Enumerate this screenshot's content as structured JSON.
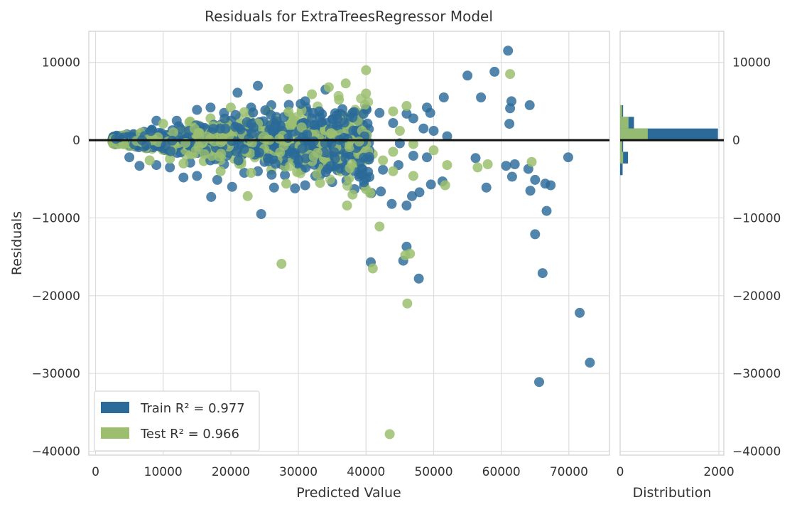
{
  "chart_data": {
    "type": "scatter",
    "title": "Residuals for ExtraTreesRegressor Model",
    "xlabel": "Predicted Value",
    "ylabel": "Residuals",
    "xlim": [
      -1000,
      76000
    ],
    "ylim": [
      -40500,
      14000
    ],
    "xticks": [
      0,
      10000,
      20000,
      30000,
      40000,
      50000,
      60000,
      70000
    ],
    "yticks": [
      10000,
      0,
      -10000,
      -20000,
      -30000,
      -40000
    ],
    "grid": true,
    "zero_line": 0,
    "legend": {
      "placement": "lower-left",
      "entries": [
        {
          "label": "Train R² = 0.977",
          "color": "#2b6a99"
        },
        {
          "label": "Test R² = 0.966",
          "color": "#9bbf6f"
        }
      ]
    },
    "series": [
      {
        "name": "Train",
        "color": "#2b6a99",
        "r2": 0.977,
        "points": [
          [
            61000,
            11500
          ],
          [
            59000,
            8800
          ],
          [
            55000,
            8300
          ],
          [
            57000,
            5500
          ],
          [
            51500,
            5500
          ],
          [
            61500,
            5000
          ],
          [
            61300,
            4100
          ],
          [
            64200,
            4500
          ],
          [
            61200,
            2100
          ],
          [
            49000,
            4200
          ],
          [
            49500,
            3500
          ],
          [
            46000,
            3400
          ],
          [
            47000,
            2800
          ],
          [
            48500,
            1500
          ],
          [
            50000,
            1200
          ],
          [
            52000,
            500
          ],
          [
            44000,
            2200
          ],
          [
            42000,
            3500
          ],
          [
            40000,
            4100
          ],
          [
            38000,
            3200
          ],
          [
            36500,
            4000
          ],
          [
            34000,
            6500
          ],
          [
            31000,
            5000
          ],
          [
            26000,
            4500
          ],
          [
            23000,
            4200
          ],
          [
            24000,
            7000
          ],
          [
            21000,
            6100
          ],
          [
            19000,
            3500
          ],
          [
            17000,
            4200
          ],
          [
            15000,
            3900
          ],
          [
            12000,
            2500
          ],
          [
            9000,
            2500
          ],
          [
            45000,
            -400
          ],
          [
            47000,
            -2000
          ],
          [
            49000,
            -2200
          ],
          [
            56200,
            -2300
          ],
          [
            60700,
            -3300
          ],
          [
            62000,
            -3100
          ],
          [
            64000,
            -3700
          ],
          [
            69900,
            -2200
          ],
          [
            61600,
            -4700
          ],
          [
            64300,
            -6500
          ],
          [
            66500,
            -5600
          ],
          [
            67300,
            -5800
          ],
          [
            65000,
            -5100
          ],
          [
            57800,
            -6100
          ],
          [
            51300,
            -5300
          ],
          [
            49600,
            -5700
          ],
          [
            47900,
            -6700
          ],
          [
            46800,
            -7200
          ],
          [
            46000,
            -8400
          ],
          [
            43800,
            -8200
          ],
          [
            42200,
            -6600
          ],
          [
            40800,
            -6800
          ],
          [
            39700,
            -5900
          ],
          [
            38300,
            -6300
          ],
          [
            37100,
            -5200
          ],
          [
            35000,
            -5400
          ],
          [
            33200,
            -4500
          ],
          [
            31000,
            -5800
          ],
          [
            29500,
            -6200
          ],
          [
            28000,
            -4500
          ],
          [
            26400,
            -6100
          ],
          [
            24000,
            -4000
          ],
          [
            22000,
            -4200
          ],
          [
            20200,
            -6000
          ],
          [
            18000,
            -5100
          ],
          [
            17100,
            -7300
          ],
          [
            15000,
            -4600
          ],
          [
            13000,
            -4800
          ],
          [
            11000,
            -3500
          ],
          [
            9000,
            -3200
          ],
          [
            6500,
            -3300
          ],
          [
            5000,
            -2200
          ],
          [
            24500,
            -9500
          ],
          [
            66700,
            -9100
          ],
          [
            65000,
            -12100
          ],
          [
            46000,
            -13700
          ],
          [
            45500,
            -15500
          ],
          [
            40700,
            -15700
          ],
          [
            47800,
            -17800
          ],
          [
            66100,
            -17100
          ],
          [
            71600,
            -22200
          ],
          [
            73100,
            -28600
          ],
          [
            65600,
            -31100
          ],
          [
            30500,
            -3800
          ],
          [
            27500,
            -3100
          ],
          [
            25000,
            -2800
          ],
          [
            35000,
            -3400
          ],
          [
            39000,
            -4700
          ],
          [
            42500,
            -3800
          ],
          [
            44800,
            -3200
          ],
          [
            32500,
            -4600
          ],
          [
            19000,
            -3100
          ],
          [
            14000,
            -2900
          ]
        ]
      },
      {
        "name": "Test",
        "color": "#9bbf6f",
        "r2": 0.966,
        "points": [
          [
            40000,
            9000
          ],
          [
            61300,
            8500
          ],
          [
            37000,
            7300
          ],
          [
            34500,
            6800
          ],
          [
            28500,
            6600
          ],
          [
            40000,
            6000
          ],
          [
            32000,
            5900
          ],
          [
            36000,
            5200
          ],
          [
            44000,
            3700
          ],
          [
            46000,
            4400
          ],
          [
            25500,
            3700
          ],
          [
            20000,
            4200
          ],
          [
            22000,
            3600
          ],
          [
            17000,
            2800
          ],
          [
            14000,
            2400
          ],
          [
            10000,
            2100
          ],
          [
            45000,
            1200
          ],
          [
            47000,
            -500
          ],
          [
            44000,
            -1500
          ],
          [
            41000,
            -1800
          ],
          [
            50000,
            -1300
          ],
          [
            52000,
            -3200
          ],
          [
            56500,
            -3500
          ],
          [
            58000,
            -3100
          ],
          [
            64500,
            -2800
          ],
          [
            47000,
            -4600
          ],
          [
            44000,
            -4000
          ],
          [
            51700,
            -5800
          ],
          [
            36000,
            -3800
          ],
          [
            37500,
            -4900
          ],
          [
            40000,
            -6300
          ],
          [
            38000,
            -7000
          ],
          [
            33200,
            -5500
          ],
          [
            29800,
            -4100
          ],
          [
            28200,
            -5600
          ],
          [
            26000,
            -3800
          ],
          [
            23000,
            -4200
          ],
          [
            22500,
            -7200
          ],
          [
            18500,
            -4000
          ],
          [
            16000,
            -2700
          ],
          [
            13000,
            -3000
          ],
          [
            11000,
            -2400
          ],
          [
            8000,
            -2600
          ],
          [
            40600,
            -6800
          ],
          [
            37200,
            -8400
          ],
          [
            42000,
            -11100
          ],
          [
            45800,
            -14800
          ],
          [
            46500,
            -14600
          ],
          [
            27500,
            -15900
          ],
          [
            41000,
            -16500
          ],
          [
            46100,
            -21000
          ],
          [
            43500,
            -37800
          ],
          [
            30000,
            -2300
          ],
          [
            34000,
            -2200
          ],
          [
            31500,
            -3000
          ],
          [
            25000,
            -2000
          ],
          [
            20500,
            -2400
          ],
          [
            38500,
            -3300
          ],
          [
            42500,
            -2600
          ],
          [
            35500,
            -1700
          ]
        ]
      }
    ],
    "distribution": {
      "xlabel": "Distribution",
      "xlim": [
        0,
        2100
      ],
      "xticks": [
        0,
        2000
      ],
      "bin_width": 1500,
      "train_bins": [
        {
          "start": -1500,
          "count": 60
        },
        {
          "start": 0,
          "count": 1980
        },
        {
          "start": 1500,
          "count": 280
        },
        {
          "start": -3000,
          "count": 160
        },
        {
          "start": 3000,
          "count": 60
        },
        {
          "start": -4500,
          "count": 50
        }
      ],
      "test_bins": [
        {
          "start": -1500,
          "count": 40
        },
        {
          "start": 0,
          "count": 560
        },
        {
          "start": 1500,
          "count": 170
        },
        {
          "start": -3000,
          "count": 60
        },
        {
          "start": 3000,
          "count": 40
        }
      ]
    }
  }
}
